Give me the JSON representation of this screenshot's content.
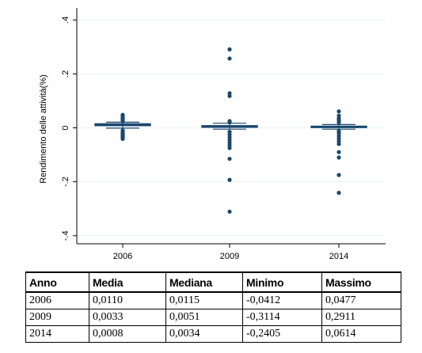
{
  "chart_data": {
    "type": "box",
    "categories": [
      "2006",
      "2009",
      "2014"
    ],
    "ylabel": "Rendimento delle attività(%)",
    "ylim": [
      -0.43,
      0.43
    ],
    "yticks": [
      -0.4,
      -0.2,
      0,
      0.2,
      0.4
    ],
    "ytick_labels": [
      "-.4",
      "-.2",
      "0",
      ".2",
      ".4"
    ],
    "grid": true,
    "color": "#1a476f",
    "series": [
      {
        "category": "2006",
        "q1": 0.008,
        "median": 0.0115,
        "q3": 0.015,
        "whisker_low": -0.001,
        "whisker_high": 0.021,
        "outliers": [
          0.048,
          0.044,
          0.04,
          0.036,
          0.032,
          0.028,
          0.025,
          -0.01,
          -0.015,
          -0.02,
          -0.025,
          -0.03,
          -0.034,
          -0.038,
          -0.041
        ]
      },
      {
        "category": "2009",
        "q1": 0.002,
        "median": 0.0051,
        "q3": 0.008,
        "whisker_low": -0.005,
        "whisker_high": 0.017,
        "outliers": [
          0.291,
          0.257,
          0.128,
          0.118,
          0.025,
          0.02,
          -0.015,
          -0.025,
          -0.035,
          -0.045,
          -0.055,
          -0.065,
          -0.075,
          -0.115,
          -0.193,
          -0.311
        ]
      },
      {
        "category": "2014",
        "q1": 0.001,
        "median": 0.0034,
        "q3": 0.006,
        "whisker_low": -0.005,
        "whisker_high": 0.012,
        "outliers": [
          0.061,
          0.045,
          0.035,
          0.028,
          0.02,
          -0.012,
          -0.02,
          -0.03,
          -0.04,
          -0.05,
          -0.06,
          -0.09,
          -0.11,
          -0.175,
          -0.241
        ]
      }
    ]
  },
  "table": {
    "headers": [
      "Anno",
      "Media",
      "Mediana",
      "Minimo",
      "Massimo"
    ],
    "rows": [
      [
        "2006",
        "0,0110",
        "0,0115",
        "-0,0412",
        "0,0477"
      ],
      [
        "2009",
        "0,0033",
        "0,0051",
        "-0,3114",
        "0,2911"
      ],
      [
        "2014",
        "0,0008",
        "0,0034",
        "-0,2405",
        "0,0614"
      ]
    ]
  }
}
